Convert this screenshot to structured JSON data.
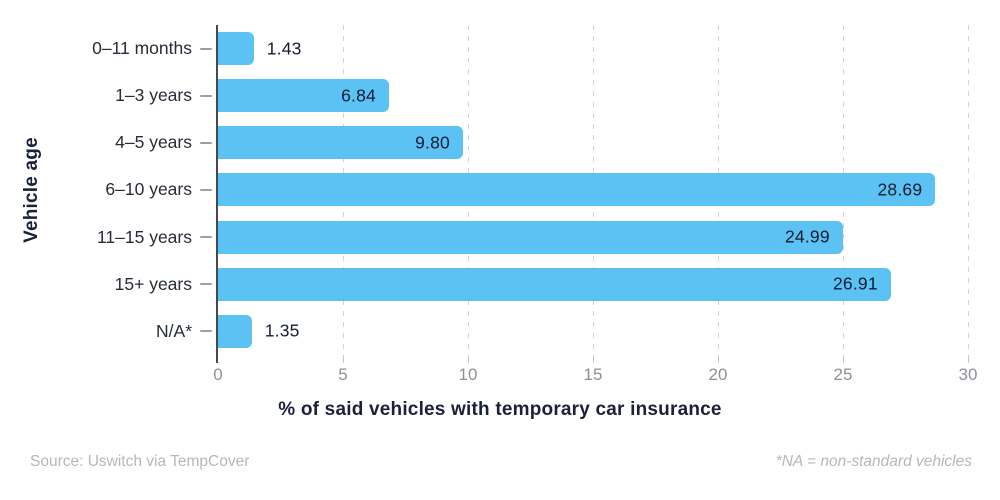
{
  "chart_data": {
    "type": "bar",
    "orientation": "horizontal",
    "title": "",
    "xlabel": "% of said vehicles with temporary car insurance",
    "ylabel": "Vehicle age",
    "categories": [
      "0–11 months",
      "1–3 years",
      "4–5 years",
      "6–10 years",
      "11–15 years",
      "15+ years",
      "N/A*"
    ],
    "values": [
      1.43,
      6.84,
      9.8,
      28.69,
      24.99,
      26.91,
      1.35
    ],
    "value_labels": [
      "1.43",
      "6.84",
      "9.80",
      "28.69",
      "24.99",
      "26.91",
      "1.35"
    ],
    "xlim": [
      0,
      30
    ],
    "xticks": [
      0,
      5,
      10,
      15,
      20,
      25,
      30
    ],
    "grid": "dashed-vertical-behind-bars",
    "legend": "none",
    "bar_color": "#5BC2F3",
    "label_color": "#131c31",
    "axis_tick_color": "#8d9196",
    "title_color": "#1a2138"
  },
  "footer": {
    "source": "Source: Uswitch via TempCover",
    "note": "*NA = non-standard vehicles"
  }
}
